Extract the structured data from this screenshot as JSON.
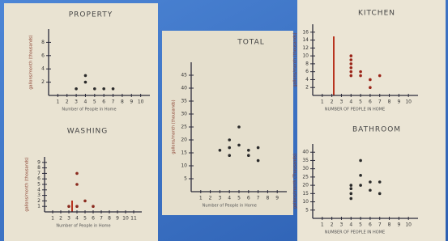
{
  "chart_data": [
    {
      "type": "scatter",
      "title": "PROPERTY",
      "x_label": "Number of People in Home",
      "y_label": "gallons/month (thousands)",
      "x": [
        3,
        4,
        4,
        5,
        6,
        7
      ],
      "values": [
        1,
        3,
        2,
        1,
        1,
        1
      ],
      "color": "#2a2a2a",
      "xlim": [
        0,
        11
      ],
      "ylim": [
        0,
        10
      ],
      "xticks": [
        1,
        2,
        3,
        4,
        5,
        6,
        7,
        8,
        9,
        10
      ],
      "yticks": [
        2,
        4,
        6,
        8
      ]
    },
    {
      "type": "scatter",
      "title": "WASHING",
      "x_label": "Number of People in Home",
      "y_label": "gallons/month (thousands)",
      "x": [
        3,
        4,
        4,
        4,
        5,
        6
      ],
      "values": [
        1,
        7,
        5,
        1,
        2,
        1
      ],
      "color": "#8a2a1e",
      "xlim": [
        0,
        12
      ],
      "ylim": [
        0,
        10
      ],
      "xticks": [
        1,
        2,
        3,
        4,
        5,
        6,
        7,
        8,
        9,
        10,
        11
      ],
      "yticks": [
        1,
        2,
        3,
        4,
        5,
        6,
        7,
        8,
        9
      ]
    },
    {
      "type": "scatter",
      "title": "TOTAL",
      "x_label": "Number of People in Home",
      "y_label": "gallons/month (thousands)",
      "x": [
        3,
        4,
        4,
        4,
        5,
        5,
        6,
        6,
        7,
        7
      ],
      "values": [
        16,
        20,
        17,
        14,
        25,
        18,
        16,
        14,
        17,
        12
      ],
      "color": "#2a2a2a",
      "xlim": [
        0,
        10
      ],
      "ylim": [
        0,
        50
      ],
      "xticks": [
        1,
        2,
        3,
        4,
        5,
        6,
        7,
        8,
        9
      ],
      "yticks": [
        5,
        10,
        15,
        20,
        25,
        30,
        35,
        40,
        45
      ]
    },
    {
      "type": "scatter",
      "title": "KITCHEN",
      "x_label": "NUMBER OF PEOPLE IN HOME",
      "y_label": "gallons/month (thousands)",
      "x": [
        4,
        4,
        4,
        4,
        4,
        4,
        5,
        5,
        6,
        6,
        7
      ],
      "values": [
        10,
        9,
        8,
        7,
        6,
        5,
        6,
        5,
        4,
        2,
        5
      ],
      "color": "#9a2418",
      "xlim": [
        0,
        11
      ],
      "ylim": [
        0,
        18
      ],
      "xticks": [
        1,
        2,
        3,
        4,
        5,
        6,
        7,
        8,
        9,
        10
      ],
      "yticks": [
        2,
        4,
        6,
        8,
        10,
        12,
        14,
        16
      ]
    },
    {
      "type": "scatter",
      "title": "BATHROOM",
      "x_label": "NUMBER OF PEOPLE IN HOME",
      "y_label": "gallons/month (Thousands)",
      "x": [
        4,
        4,
        4,
        4,
        5,
        5,
        5,
        6,
        6,
        7,
        7
      ],
      "values": [
        20,
        18,
        15,
        12,
        35,
        26,
        20,
        17,
        22,
        22,
        15
      ],
      "color": "#2a2a2a",
      "xlim": [
        0,
        11
      ],
      "ylim": [
        0,
        45
      ],
      "xticks": [
        1,
        2,
        3,
        4,
        5,
        6,
        7,
        8,
        9,
        10
      ],
      "yticks": [
        5,
        10,
        15,
        20,
        25,
        30,
        35,
        40
      ]
    }
  ]
}
